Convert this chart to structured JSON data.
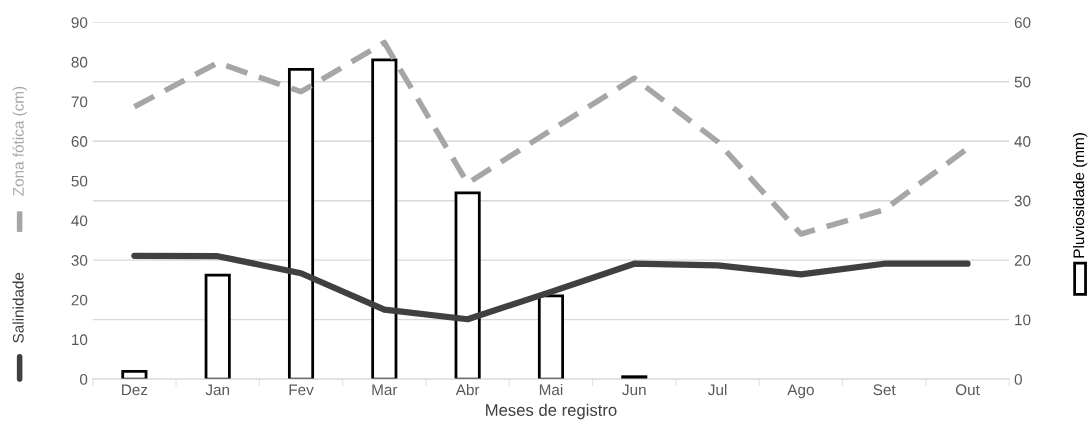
{
  "chart_data": {
    "type": "bar",
    "xlabel": "Meses de registro",
    "categories": [
      "Dez",
      "Jan",
      "Fev",
      "Mar",
      "Abr",
      "Mai",
      "Jun",
      "Jul",
      "Ago",
      "Set",
      "Out"
    ],
    "series": [
      {
        "name": "Pluviosidade (mm)",
        "axis": "y2",
        "color": "#ffffff",
        "values": [
          1.3,
          17.5,
          52.1,
          53.7,
          31.3,
          14.0,
          0.4,
          null,
          null,
          null,
          null
        ]
      },
      {
        "name": "Salinidade",
        "type": "line",
        "color": "#404040",
        "line_style": "solid",
        "values": [
          31.1,
          31.0,
          26.7,
          17.5,
          15.1,
          22.0,
          29.1,
          28.7,
          26.4,
          29.1,
          29.1
        ]
      },
      {
        "name": "Zona fótica (cm)",
        "type": "line",
        "color": "#a6a6a6",
        "line_style": "dashed",
        "values": [
          68.7,
          79.8,
          72.5,
          84.9,
          49.4,
          62.8,
          75.9,
          59.9,
          36.6,
          42.7,
          58.2
        ]
      }
    ],
    "ylim": [
      0,
      90
    ],
    "yticks": [
      0,
      10,
      20,
      30,
      40,
      50,
      60,
      70,
      80,
      90
    ],
    "y2lim": [
      0,
      60
    ],
    "y2ticks": [
      0,
      10,
      20,
      30,
      40,
      50,
      60
    ],
    "grid": "y2",
    "legend": "left"
  }
}
